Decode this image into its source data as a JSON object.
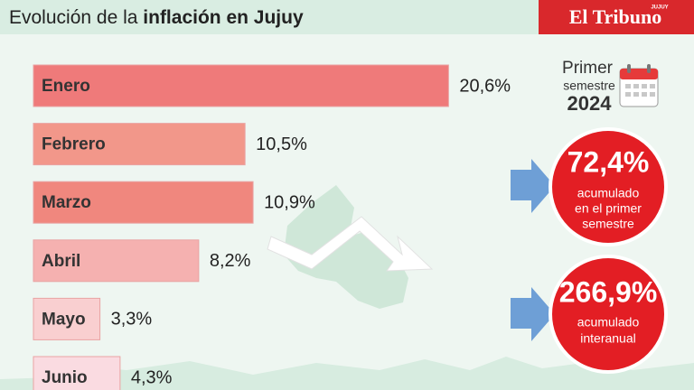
{
  "chart_data": {
    "type": "bar",
    "orientation": "horizontal",
    "title": "Evolución de la",
    "title_emphasis": "inflación en Jujuy",
    "categories": [
      "Enero",
      "Febrero",
      "Marzo",
      "Abril",
      "Mayo",
      "Junio"
    ],
    "values": [
      20.6,
      10.5,
      10.9,
      8.2,
      3.3,
      4.3
    ],
    "value_labels": [
      "20,6%",
      "10,5%",
      "10,9%",
      "8,2%",
      "3,3%",
      "4,3%"
    ],
    "colors": [
      "#ef7a7a",
      "#f2978a",
      "#f0877e",
      "#f5b1b0",
      "#f9cfd0",
      "#fadbe1"
    ]
  },
  "brand": {
    "name": "El Tribuno",
    "edition": "JUJUY"
  },
  "summary": {
    "period": [
      "Primer",
      "semestre"
    ],
    "year": "2024",
    "stats": [
      {
        "figure": "72,4%",
        "caption": [
          "acumulado",
          "en el primer",
          "semestre"
        ]
      },
      {
        "figure": "266,9%",
        "caption": [
          "acumulado",
          "interanual"
        ]
      }
    ]
  }
}
